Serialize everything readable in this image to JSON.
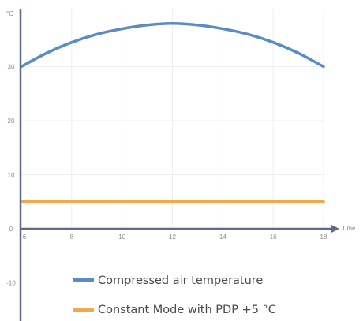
{
  "chart_data": {
    "type": "line",
    "title": "",
    "xlabel": "Time",
    "ylabel": "°C",
    "xlim": [
      6,
      18
    ],
    "ylim": [
      -10,
      40
    ],
    "xticks": [
      6,
      8,
      10,
      12,
      14,
      16,
      18
    ],
    "yticks": [
      -10,
      0,
      10,
      20,
      30
    ],
    "grid": true,
    "legend_position": "bottom",
    "series": [
      {
        "name": "Compressed air temperature",
        "color": "#5b8bc4",
        "x": [
          6,
          7,
          8,
          9,
          10,
          11,
          12,
          13,
          14,
          15,
          16,
          17,
          18
        ],
        "y": [
          30,
          32.5,
          34.5,
          36,
          37,
          37.7,
          38,
          37.7,
          37,
          36,
          34.5,
          32.5,
          30
        ]
      },
      {
        "name": "Constant Mode with PDP +5 °C",
        "color": "#f0a94c",
        "x": [
          6,
          18
        ],
        "y": [
          5,
          5
        ]
      }
    ]
  }
}
